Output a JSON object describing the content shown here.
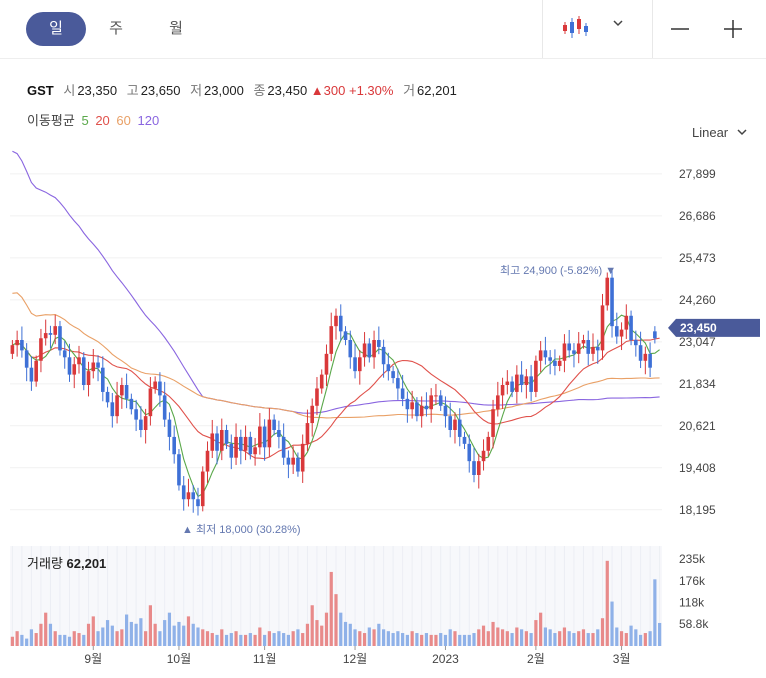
{
  "tabs": [
    {
      "label": "일",
      "active": true
    },
    {
      "label": "주",
      "active": false
    },
    {
      "label": "월",
      "active": false
    }
  ],
  "controls": {
    "chart_type_icon": "candlestick-icon",
    "dropdown_icon": "chevron-down-icon",
    "zoom_out_icon": "minus-icon",
    "zoom_in_icon": "plus-icon",
    "scale_label": "Linear",
    "scale_icon": "chevron-down-icon"
  },
  "quote": {
    "symbol": "GST",
    "open_label": "시",
    "open": "23,350",
    "high_label": "고",
    "high": "23,650",
    "low_label": "저",
    "low": "23,000",
    "close_label": "종",
    "close": "23,450",
    "change": "300",
    "change_pct": "+1.30%",
    "volume_label": "거",
    "volume": "62,201"
  },
  "moving_average": {
    "label": "이동평균",
    "periods": [
      {
        "label": "5",
        "color": "#5aa84a"
      },
      {
        "label": "20",
        "color": "#e0514b"
      },
      {
        "label": "60",
        "color": "#e9a066"
      },
      {
        "label": "120",
        "color": "#8a66e0"
      }
    ]
  },
  "colors": {
    "up": "#d9383a",
    "down": "#3e70d6",
    "price_badge": "#4a5a9a",
    "annotation": "#6478b0",
    "active_tab": "#4a5a9a"
  },
  "chart_data": {
    "type": "candlestick",
    "y_ticks": [
      "27,899",
      "26,686",
      "25,473",
      "24,260",
      "23,047",
      "21,834",
      "20,621",
      "19,408",
      "18,195"
    ],
    "x_ticks": [
      "9월",
      "10월",
      "11월",
      "12월",
      "2023",
      "2월",
      "3월"
    ],
    "current_price": "23,450",
    "annotation_high": {
      "prefix": "최고",
      "value": "24,900",
      "pct": "(-5.82%)"
    },
    "annotation_low": {
      "prefix": "최저",
      "value": "18,000",
      "pct": "(30.28%)"
    },
    "volume_label": "거래량",
    "volume_value": "62,201",
    "volume_ticks": [
      "235k",
      "176k",
      "118k",
      "58.8k"
    ],
    "ylim": [
      17900,
      28300
    ],
    "vol_max": 270000,
    "closes": [
      22950,
      23100,
      22800,
      22300,
      21900,
      22500,
      23150,
      23300,
      23250,
      23500,
      22800,
      22600,
      22100,
      22400,
      22600,
      21800,
      22200,
      22450,
      22300,
      21600,
      21300,
      20900,
      21500,
      21800,
      21400,
      21100,
      20800,
      20500,
      20900,
      21700,
      21900,
      21500,
      20800,
      20300,
      19800,
      18900,
      18500,
      18700,
      18500,
      18300,
      19300,
      19900,
      20400,
      19900,
      20500,
      20100,
      19700,
      20300,
      19900,
      20300,
      19800,
      20000,
      20600,
      20000,
      20800,
      20500,
      20300,
      19700,
      19500,
      19700,
      19300,
      20100,
      20700,
      21200,
      21700,
      22100,
      22700,
      23500,
      23800,
      23350,
      23100,
      22600,
      22200,
      22600,
      23000,
      22600,
      23100,
      22900,
      22400,
      22200,
      22000,
      21700,
      21400,
      21100,
      21300,
      20900,
      21200,
      21100,
      21500,
      21500,
      21200,
      20900,
      20500,
      20800,
      20300,
      20100,
      19600,
      19200,
      19600,
      19900,
      20300,
      21100,
      21500,
      21800,
      21900,
      21600,
      22100,
      21800,
      22050,
      21600,
      22500,
      22800,
      22600,
      22500,
      22350,
      22500,
      23000,
      22800,
      22700,
      23000,
      23100,
      22700,
      22900,
      22800,
      24100,
      24900,
      23500,
      23200,
      23400,
      23800,
      23100,
      22950,
      22500,
      22700,
      22300,
      23150,
      23450
    ],
    "opens": [
      22700,
      22950,
      23100,
      22800,
      22300,
      21900,
      22500,
      23150,
      23300,
      23250,
      23500,
      22800,
      22600,
      22100,
      22400,
      22600,
      21800,
      22200,
      22450,
      22300,
      21600,
      21300,
      20900,
      21500,
      21800,
      21400,
      21100,
      20800,
      20500,
      20900,
      21700,
      21900,
      21500,
      20800,
      20300,
      19800,
      18900,
      18500,
      18700,
      18500,
      18300,
      19300,
      19900,
      20400,
      19900,
      20500,
      20100,
      19700,
      20300,
      19900,
      20300,
      19800,
      20000,
      20600,
      20000,
      20800,
      20500,
      20300,
      19700,
      19500,
      19700,
      19300,
      20100,
      20700,
      21200,
      21700,
      22100,
      22700,
      23500,
      23800,
      23350,
      23100,
      22600,
      22200,
      22600,
      23000,
      22600,
      23100,
      22900,
      22400,
      22200,
      22000,
      21700,
      21400,
      21100,
      21300,
      20900,
      21200,
      21100,
      21500,
      21500,
      21200,
      20900,
      20500,
      20800,
      20300,
      20100,
      19600,
      19200,
      19600,
      19900,
      20300,
      21100,
      21500,
      21800,
      21900,
      21600,
      22100,
      21800,
      22050,
      21600,
      22500,
      22800,
      22600,
      22500,
      22350,
      22500,
      23000,
      22800,
      22700,
      23000,
      23100,
      22700,
      22900,
      22800,
      24100,
      24900,
      23500,
      23200,
      23400,
      23800,
      23100,
      22950,
      22500,
      22700,
      23350
    ],
    "volume": [
      25000,
      40000,
      30000,
      20000,
      45000,
      35000,
      60000,
      90000,
      60000,
      40000,
      30000,
      30000,
      25000,
      40000,
      35000,
      30000,
      60000,
      80000,
      40000,
      50000,
      70000,
      55000,
      40000,
      45000,
      85000,
      65000,
      60000,
      75000,
      40000,
      110000,
      60000,
      40000,
      70000,
      90000,
      55000,
      65000,
      55000,
      80000,
      60000,
      50000,
      45000,
      40000,
      35000,
      30000,
      45000,
      30000,
      35000,
      40000,
      30000,
      30000,
      35000,
      30000,
      50000,
      30000,
      40000,
      35000,
      40000,
      35000,
      30000,
      40000,
      45000,
      35000,
      60000,
      110000,
      70000,
      55000,
      90000,
      200000,
      140000,
      90000,
      65000,
      60000,
      45000,
      40000,
      35000,
      50000,
      45000,
      60000,
      45000,
      40000,
      35000,
      40000,
      35000,
      30000,
      40000,
      35000,
      30000,
      35000,
      30000,
      30000,
      35000,
      30000,
      45000,
      40000,
      30000,
      30000,
      30000,
      35000,
      45000,
      55000,
      40000,
      65000,
      50000,
      45000,
      40000,
      35000,
      50000,
      45000,
      40000,
      35000,
      70000,
      90000,
      50000,
      45000,
      35000,
      40000,
      50000,
      40000,
      35000,
      40000,
      45000,
      35000,
      35000,
      45000,
      75000,
      230000,
      120000,
      50000,
      40000,
      35000,
      55000,
      45000,
      30000,
      35000,
      40000,
      180000,
      62201
    ]
  }
}
